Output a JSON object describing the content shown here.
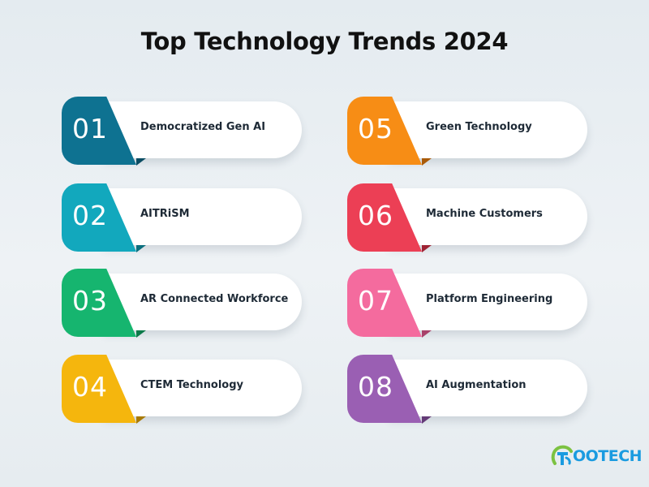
{
  "title": "Top Technology Trends 2024",
  "trends": [
    {
      "num": "01",
      "label": "Democratized Gen AI",
      "color": "#0e7291",
      "fold": "#0a4c63"
    },
    {
      "num": "02",
      "label": "AITRiSM",
      "color": "#12a8bd",
      "fold": "#0b6f7e"
    },
    {
      "num": "03",
      "label": "AR Connected Workforce",
      "color": "#16b56f",
      "fold": "#0c7a4a"
    },
    {
      "num": "04",
      "label": "CTEM Technology",
      "color": "#f5b60d",
      "fold": "#a87a05"
    },
    {
      "num": "05",
      "label": "Green Technology",
      "color": "#f78d15",
      "fold": "#a95a08"
    },
    {
      "num": "06",
      "label": "Machine Customers",
      "color": "#ec3f55",
      "fold": "#9e2334"
    },
    {
      "num": "07",
      "label": "Platform Engineering",
      "color": "#f46b9e",
      "fold": "#a8416a"
    },
    {
      "num": "08",
      "label": "AI Augmentation",
      "color": "#9a5fb3",
      "fold": "#643b77"
    }
  ],
  "logo": {
    "text": "OOTECH",
    "mark_color": "#1a9be0",
    "accent_color": "#7cc242"
  }
}
